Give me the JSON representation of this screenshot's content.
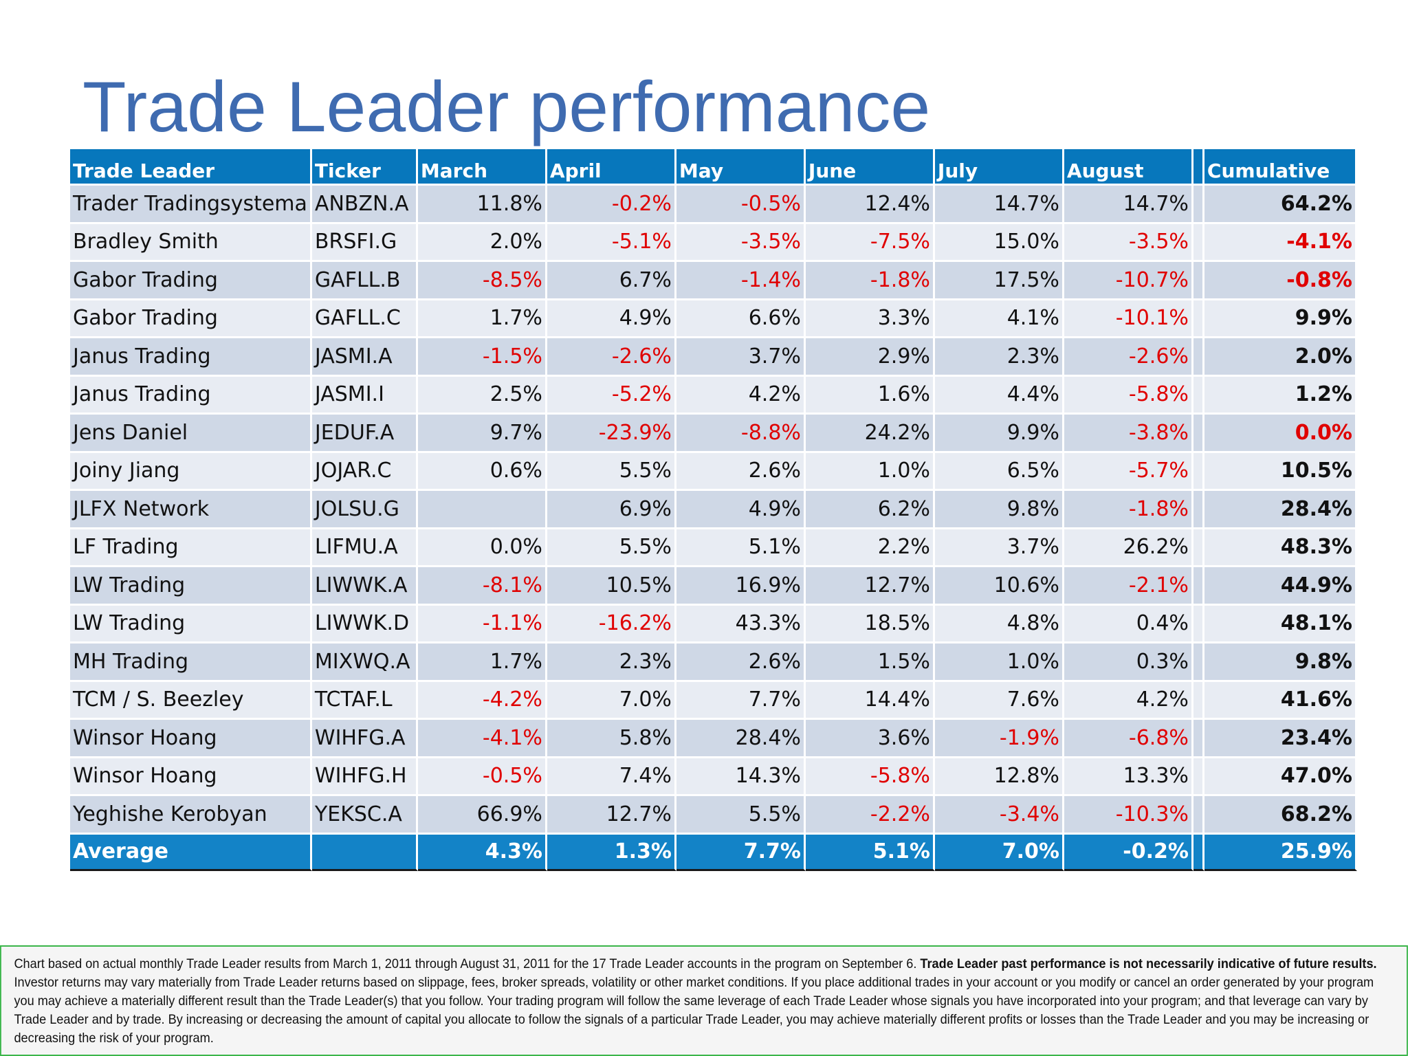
{
  "title": "Trade Leader performance",
  "colors": {
    "title": "#3f6bb0",
    "header_bg": "#0777bc",
    "negative": "#e00000",
    "border_green": "#3bb54a"
  },
  "table": {
    "headers": [
      "Trade Leader",
      "Ticker",
      "March",
      "April",
      "May",
      "June",
      "July",
      "August",
      "Cumulative"
    ],
    "rows": [
      [
        "Trader Tradingsystema",
        "ANBZN.A",
        "11.8%",
        "-0.2%",
        "-0.5%",
        "12.4%",
        "14.7%",
        "14.7%",
        "64.2%"
      ],
      [
        "Bradley Smith",
        "BRSFI.G",
        "2.0%",
        "-5.1%",
        "-3.5%",
        "-7.5%",
        "15.0%",
        "-3.5%",
        "-4.1%"
      ],
      [
        "Gabor Trading",
        "GAFLL.B",
        "-8.5%",
        "6.7%",
        "-1.4%",
        "-1.8%",
        "17.5%",
        "-10.7%",
        "-0.8%"
      ],
      [
        "Gabor Trading",
        "GAFLL.C",
        "1.7%",
        "4.9%",
        "6.6%",
        "3.3%",
        "4.1%",
        "-10.1%",
        "9.9%"
      ],
      [
        "Janus Trading",
        "JASMI.A",
        "-1.5%",
        "-2.6%",
        "3.7%",
        "2.9%",
        "2.3%",
        "-2.6%",
        "2.0%"
      ],
      [
        "Janus Trading",
        "JASMI.I",
        "2.5%",
        "-5.2%",
        "4.2%",
        "1.6%",
        "4.4%",
        "-5.8%",
        "1.2%"
      ],
      [
        "Jens Daniel",
        "JEDUF.A",
        "9.7%",
        "-23.9%",
        "-8.8%",
        "24.2%",
        "9.9%",
        "-3.8%",
        "0.0%"
      ],
      [
        "Joiny Jiang",
        "JOJAR.C",
        "0.6%",
        "5.5%",
        "2.6%",
        "1.0%",
        "6.5%",
        "-5.7%",
        "10.5%"
      ],
      [
        "JLFX Network",
        "JOLSU.G",
        "",
        "6.9%",
        "4.9%",
        "6.2%",
        "9.8%",
        "-1.8%",
        "28.4%"
      ],
      [
        "LF Trading",
        "LIFMU.A",
        "0.0%",
        "5.5%",
        "5.1%",
        "2.2%",
        "3.7%",
        "26.2%",
        "48.3%"
      ],
      [
        "LW Trading",
        "LIWWK.A",
        "-8.1%",
        "10.5%",
        "16.9%",
        "12.7%",
        "10.6%",
        "-2.1%",
        "44.9%"
      ],
      [
        "LW Trading",
        "LIWWK.D",
        "-1.1%",
        "-16.2%",
        "43.3%",
        "18.5%",
        "4.8%",
        "0.4%",
        "48.1%"
      ],
      [
        "MH Trading",
        "MIXWQ.A",
        "1.7%",
        "2.3%",
        "2.6%",
        "1.5%",
        "1.0%",
        "0.3%",
        "9.8%"
      ],
      [
        "TCM / S. Beezley",
        "TCTAF.L",
        "-4.2%",
        "7.0%",
        "7.7%",
        "14.4%",
        "7.6%",
        "4.2%",
        "41.6%"
      ],
      [
        "Winsor Hoang",
        "WIHFG.A",
        "-4.1%",
        "5.8%",
        "28.4%",
        "3.6%",
        "-1.9%",
        "-6.8%",
        "23.4%"
      ],
      [
        "Winsor Hoang",
        "WIHFG.H",
        "-0.5%",
        "7.4%",
        "14.3%",
        "-5.8%",
        "12.8%",
        "13.3%",
        "47.0%"
      ],
      [
        "Yeghishe Kerobyan",
        "YEKSC.A",
        "66.9%",
        "12.7%",
        "5.5%",
        "-2.2%",
        "-3.4%",
        "-10.3%",
        "68.2%"
      ]
    ],
    "negative_cumulative_red": [
      "-4.1%",
      "-0.8%",
      "0.0%"
    ],
    "average": [
      "Average",
      "",
      "4.3%",
      "1.3%",
      "7.7%",
      "5.1%",
      "7.0%",
      "-0.2%",
      "25.9%"
    ]
  },
  "disclaimer": {
    "part1": "Chart based on actual monthly Trade Leader results from March 1, 2011 through August 31, 2011 for the 17 Trade Leader accounts in the program on September 6. ",
    "bold": "Trade Leader past performance is not necessarily indicative of future results.",
    "part2": " Investor returns may vary materially from Trade Leader returns based on slippage, fees, broker spreads, volatility or other market conditions. If you place additional trades in your account or you modify or cancel an order generated by your program you may achieve a materially different result than the Trade Leader(s) that you follow. Your trading program will follow the same leverage of each Trade Leader whose signals you have incorporated into your program; and that leverage can vary by Trade Leader and by trade. By increasing or decreasing the amount of capital you allocate to follow the signals of a particular Trade Leader, you may achieve materially different profits or losses than the Trade Leader and you may be increasing or decreasing the risk of your program."
  }
}
